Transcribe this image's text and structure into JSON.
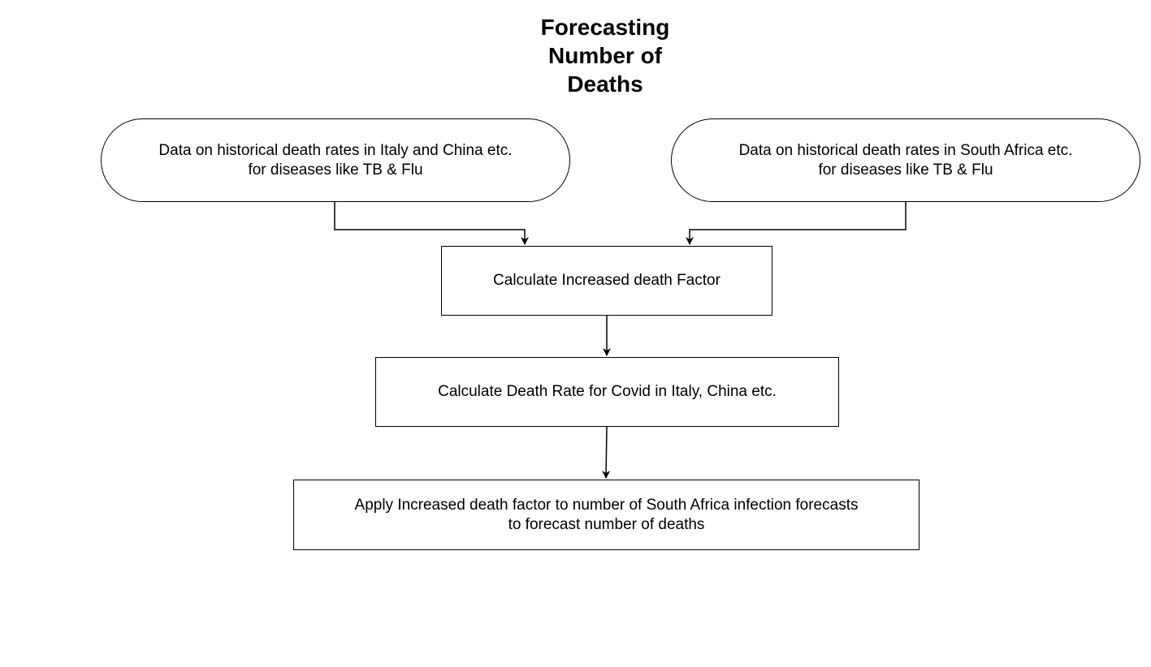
{
  "title": {
    "lines": [
      "Forecasting",
      "Number of",
      "Deaths"
    ]
  },
  "nodes": {
    "source_left": {
      "lines": [
        "Data on historical death rates in Italy and China etc.",
        "for diseases like TB & Flu"
      ]
    },
    "source_right": {
      "lines": [
        "Data on historical death rates in South Africa etc.",
        "for diseases like TB & Flu"
      ]
    },
    "step_increased_factor": {
      "lines": [
        "Calculate Increased death Factor"
      ]
    },
    "step_covid_rate": {
      "lines": [
        "Calculate Death Rate for Covid in Italy, China etc."
      ]
    },
    "step_apply_factor": {
      "lines": [
        "Apply Increased death factor to number of South Africa infection forecasts",
        "to forecast number of deaths"
      ]
    }
  },
  "colors": {
    "stroke": "#000000",
    "fill": "#ffffff",
    "text": "#000000"
  }
}
